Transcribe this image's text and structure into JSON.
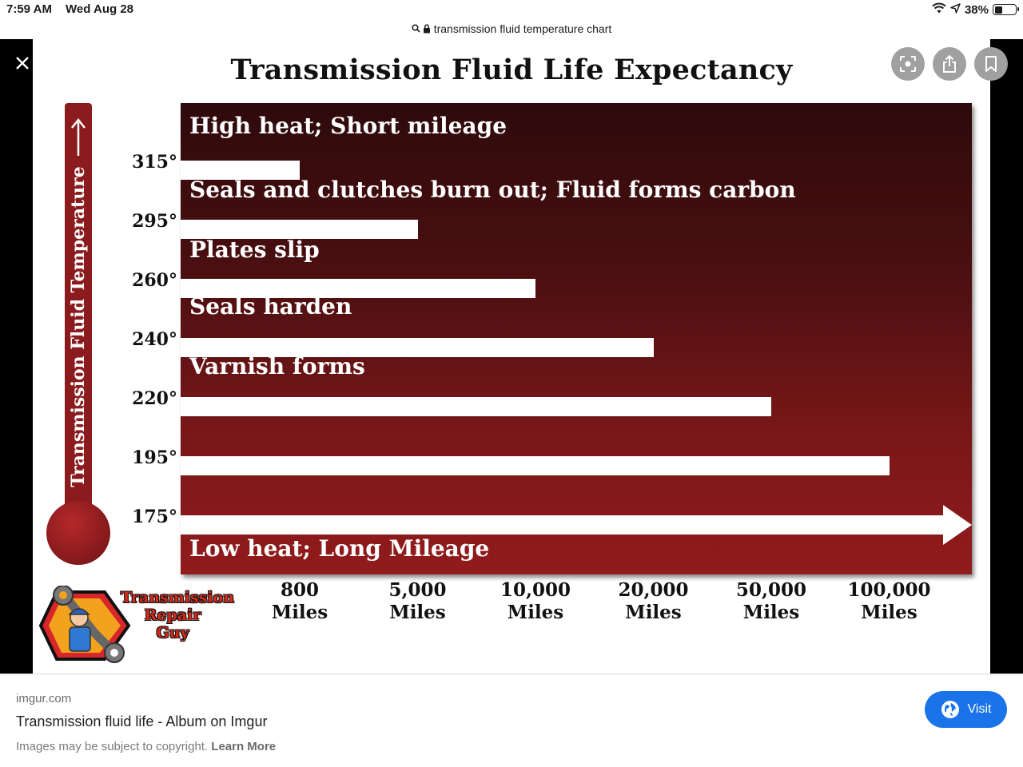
{
  "status_bar": {
    "time": "7:59 AM",
    "date": "Wed Aug 28",
    "battery": "38%",
    "battery_level": 0.38
  },
  "url_bar": {
    "query": "transmission fluid temperature chart"
  },
  "viewer": {
    "controls": {
      "close_icon": "close-icon",
      "lens_icon": "lens-icon",
      "share_icon": "share-icon",
      "bookmark_icon": "bookmark-icon"
    }
  },
  "infographic": {
    "title": "Transmission Fluid Life Expectancy",
    "y_axis_label": "Transmission Fluid Temperature",
    "band_labels": [
      "High heat; Short mileage",
      "Seals and clutches burn out; Fluid forms carbon",
      "Plates slip",
      "Seals harden",
      "Varnish forms",
      "Low heat; Long Mileage"
    ],
    "logo_text": [
      "Transmission",
      "Repair",
      "Guy"
    ]
  },
  "chart_data": {
    "type": "bar",
    "orientation": "horizontal",
    "title": "Transmission Fluid Life Expectancy",
    "ylabel": "Transmission Fluid Temperature",
    "categories": [
      "315°",
      "295°",
      "260°",
      "240°",
      "220°",
      "195°",
      "175°"
    ],
    "values": [
      "800 Miles",
      "5,000 Miles",
      "10,000 Miles",
      "20,000 Miles",
      "50,000 Miles",
      "100,000 Miles",
      "beyond 100,000 Miles"
    ],
    "x_tick_labels": [
      [
        "800",
        "Miles"
      ],
      [
        "5,000",
        "Miles"
      ],
      [
        "10,000",
        "Miles"
      ],
      [
        "20,000",
        "Miles"
      ],
      [
        "50,000",
        "Miles"
      ],
      [
        "100,000",
        "Miles"
      ]
    ],
    "x_tick_values": [
      800,
      5000,
      10000,
      20000,
      50000,
      100000
    ],
    "x_scale": "categorical (equally spaced ticks)",
    "bar_tick_index": [
      0,
      1,
      2,
      3,
      4,
      5,
      6
    ],
    "last_bar_has_arrow": true,
    "colors": {
      "panel_top": "#2e0a0b",
      "panel_bottom": "#921b1c",
      "bars": "#ffffff",
      "thermometer": "#8b1b1d"
    }
  },
  "footer": {
    "source": "imgur.com",
    "page_title": "Transmission fluid life - Album on Imgur",
    "copyright": "Images may be subject to copyright.",
    "learn_more": "Learn More",
    "visit_label": "Visit",
    "accent": "#1a73e8"
  }
}
